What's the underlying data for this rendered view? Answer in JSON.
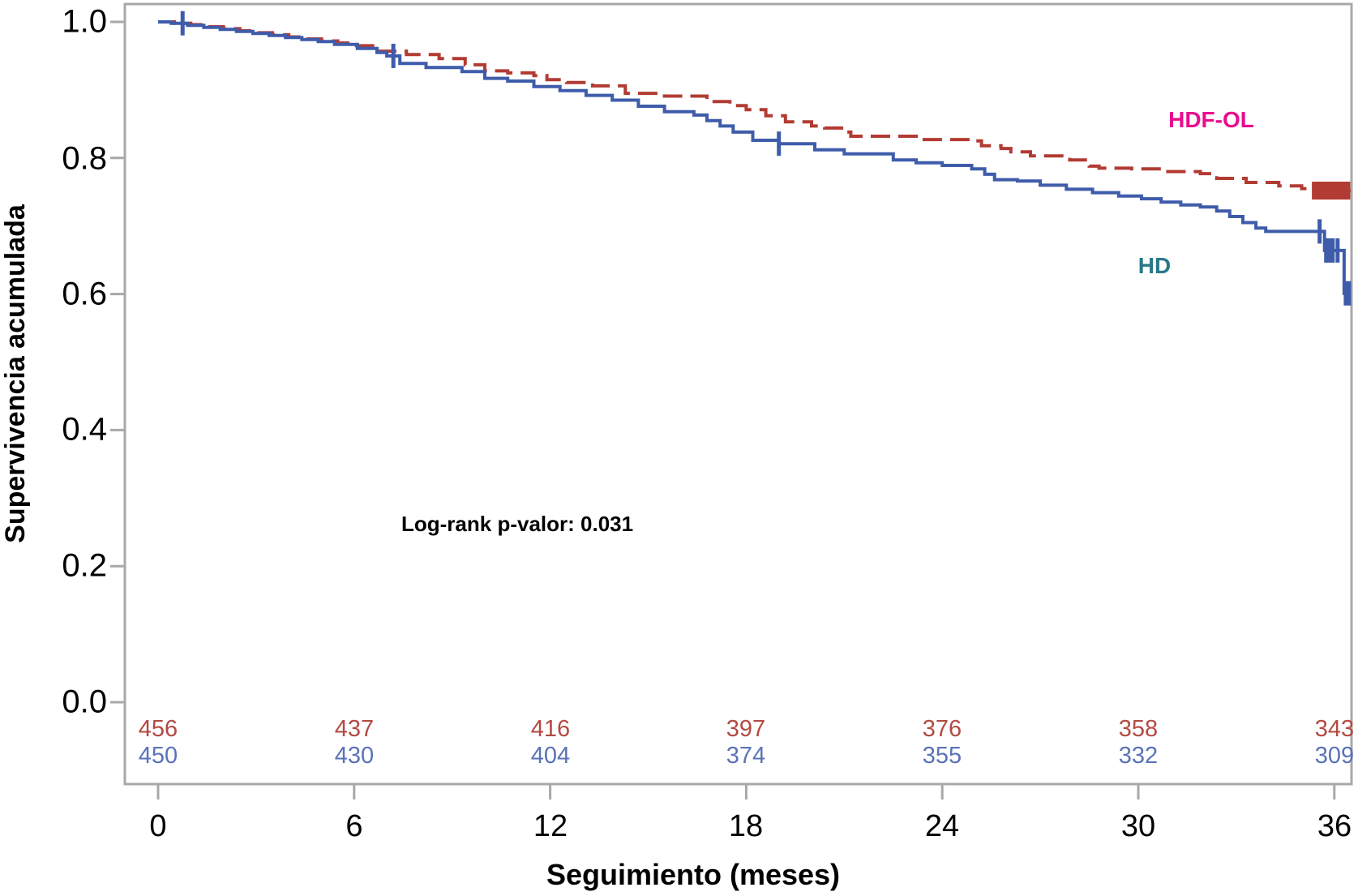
{
  "chart_data": {
    "type": "line",
    "subtype": "kaplan-meier-step",
    "title": "",
    "xlabel": "Seguimiento (meses)",
    "ylabel": "Supervivencia acumulada",
    "xlim": [
      0,
      36.5
    ],
    "ylim": [
      0.0,
      1.0
    ],
    "grid": "off",
    "frame_color": "#a8a8a8",
    "x_ticks": [
      0,
      6,
      12,
      18,
      24,
      30,
      36
    ],
    "x_tick_labels": [
      "0",
      "6",
      "12",
      "18",
      "24",
      "30",
      "36"
    ],
    "y_ticks": [
      1.0,
      0.8,
      0.6,
      0.4,
      0.2,
      0.0
    ],
    "y_tick_labels": [
      "1.0",
      "0.8",
      "0.6",
      "0.4",
      "0.2",
      "0.0"
    ],
    "annotation": "Log-rank p-valor: 0.031",
    "series": [
      {
        "name": "HDF-OL",
        "line_color": "#b23b33",
        "label_color": "#e80d8d",
        "dashed": true,
        "censor_width": 7,
        "censor_half": 11,
        "steps": [
          [
            0,
            1.0
          ],
          [
            0.5,
            0.998
          ],
          [
            1.0,
            0.996
          ],
          [
            1.5,
            0.993
          ],
          [
            2.0,
            0.99
          ],
          [
            2.5,
            0.987
          ],
          [
            3.0,
            0.984
          ],
          [
            3.5,
            0.981
          ],
          [
            4.0,
            0.978
          ],
          [
            4.5,
            0.975
          ],
          [
            5.0,
            0.972
          ],
          [
            5.5,
            0.969
          ],
          [
            6.0,
            0.965
          ],
          [
            6.7,
            0.957
          ],
          [
            7.6,
            0.952
          ],
          [
            8.6,
            0.946
          ],
          [
            9.4,
            0.937
          ],
          [
            10.0,
            0.928
          ],
          [
            10.7,
            0.925
          ],
          [
            11.5,
            0.921
          ],
          [
            11.9,
            0.915
          ],
          [
            12.5,
            0.911
          ],
          [
            13.3,
            0.906
          ],
          [
            14.3,
            0.895
          ],
          [
            15.5,
            0.891
          ],
          [
            16.8,
            0.883
          ],
          [
            17.5,
            0.877
          ],
          [
            18.0,
            0.871
          ],
          [
            18.6,
            0.862
          ],
          [
            19.2,
            0.853
          ],
          [
            20.0,
            0.847
          ],
          [
            20.4,
            0.844
          ],
          [
            21.0,
            0.838
          ],
          [
            21.2,
            0.832
          ],
          [
            23.2,
            0.827
          ],
          [
            25.0,
            0.825
          ],
          [
            25.2,
            0.818
          ],
          [
            25.8,
            0.814
          ],
          [
            26.1,
            0.809
          ],
          [
            26.7,
            0.803
          ],
          [
            27.9,
            0.797
          ],
          [
            28.5,
            0.788
          ],
          [
            28.8,
            0.785
          ],
          [
            29.8,
            0.784
          ],
          [
            30.8,
            0.78
          ],
          [
            31.9,
            0.777
          ],
          [
            32.4,
            0.77
          ],
          [
            33.3,
            0.764
          ],
          [
            34.3,
            0.759
          ],
          [
            35.0,
            0.755
          ],
          [
            35.4,
            0.752
          ],
          [
            36.5,
            0.752
          ]
        ],
        "censors": [
          [
            35.4,
            0.752
          ],
          [
            35.5,
            0.752
          ],
          [
            35.6,
            0.752
          ],
          [
            35.7,
            0.752
          ],
          [
            35.8,
            0.752
          ],
          [
            35.9,
            0.752
          ],
          [
            36.0,
            0.752
          ],
          [
            36.1,
            0.752
          ],
          [
            36.2,
            0.752
          ],
          [
            36.3,
            0.752
          ],
          [
            36.4,
            0.752
          ]
        ]
      },
      {
        "name": "HD",
        "line_color": "#3f5cab",
        "label_color": "#28798a",
        "dashed": false,
        "censor_width": 5,
        "censor_half": 15,
        "steps": [
          [
            0,
            1.0
          ],
          [
            0.4,
            0.998
          ],
          [
            0.9,
            0.995
          ],
          [
            1.4,
            0.992
          ],
          [
            1.9,
            0.989
          ],
          [
            2.4,
            0.986
          ],
          [
            2.9,
            0.983
          ],
          [
            3.4,
            0.98
          ],
          [
            3.9,
            0.977
          ],
          [
            4.4,
            0.974
          ],
          [
            4.9,
            0.971
          ],
          [
            5.4,
            0.967
          ],
          [
            6.1,
            0.961
          ],
          [
            6.7,
            0.955
          ],
          [
            7.0,
            0.95
          ],
          [
            7.4,
            0.939
          ],
          [
            8.2,
            0.933
          ],
          [
            9.3,
            0.927
          ],
          [
            10.0,
            0.917
          ],
          [
            10.7,
            0.913
          ],
          [
            11.5,
            0.905
          ],
          [
            12.3,
            0.899
          ],
          [
            13.1,
            0.892
          ],
          [
            13.9,
            0.885
          ],
          [
            14.7,
            0.876
          ],
          [
            15.5,
            0.868
          ],
          [
            16.4,
            0.863
          ],
          [
            16.8,
            0.855
          ],
          [
            17.2,
            0.847
          ],
          [
            17.6,
            0.838
          ],
          [
            18.2,
            0.826
          ],
          [
            19.0,
            0.821
          ],
          [
            20.1,
            0.812
          ],
          [
            21.0,
            0.806
          ],
          [
            22.5,
            0.797
          ],
          [
            23.2,
            0.793
          ],
          [
            24.0,
            0.789
          ],
          [
            24.9,
            0.784
          ],
          [
            25.3,
            0.776
          ],
          [
            25.6,
            0.768
          ],
          [
            26.3,
            0.766
          ],
          [
            27.0,
            0.76
          ],
          [
            27.8,
            0.754
          ],
          [
            28.6,
            0.749
          ],
          [
            29.4,
            0.744
          ],
          [
            30.1,
            0.74
          ],
          [
            30.7,
            0.735
          ],
          [
            31.3,
            0.731
          ],
          [
            31.9,
            0.728
          ],
          [
            32.4,
            0.722
          ],
          [
            32.8,
            0.714
          ],
          [
            33.2,
            0.705
          ],
          [
            33.6,
            0.697
          ],
          [
            33.9,
            0.692
          ],
          [
            35.7,
            0.664
          ],
          [
            36.3,
            0.601
          ],
          [
            36.5,
            0.601
          ]
        ],
        "censors": [
          [
            0.75,
            0.998
          ],
          [
            7.2,
            0.95
          ],
          [
            19.0,
            0.821
          ],
          [
            35.55,
            0.692
          ],
          [
            35.75,
            0.664
          ],
          [
            35.85,
            0.664
          ],
          [
            35.95,
            0.664
          ],
          [
            36.1,
            0.664
          ],
          [
            36.35,
            0.601
          ],
          [
            36.45,
            0.601
          ]
        ]
      }
    ],
    "at_risk": {
      "times": [
        0,
        6,
        12,
        18,
        24,
        30,
        36
      ],
      "rows": [
        {
          "name": "HDF-OL",
          "color": "#b34a42",
          "values": [
            "456",
            "437",
            "416",
            "397",
            "376",
            "358",
            "343"
          ]
        },
        {
          "name": "HD",
          "color": "#5a72b8",
          "values": [
            "450",
            "430",
            "404",
            "374",
            "355",
            "332",
            "309"
          ]
        }
      ]
    }
  }
}
